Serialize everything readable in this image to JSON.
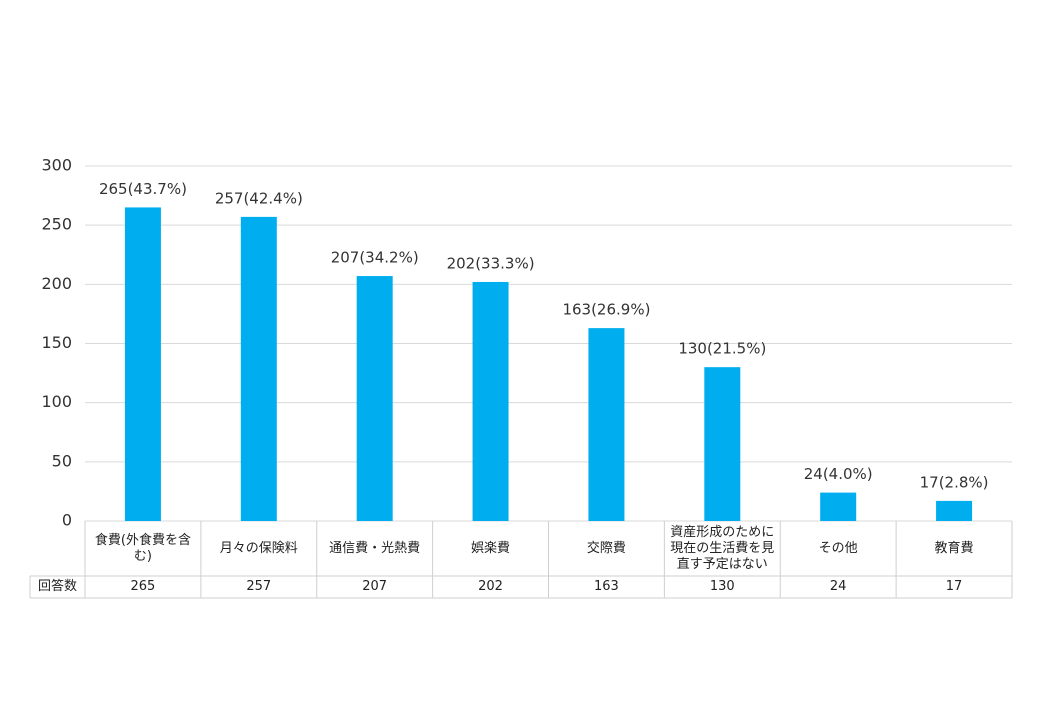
{
  "chart_data": {
    "type": "bar",
    "categories": [
      "食費(外食費を含む)",
      "月々の保険料",
      "通信費・光熱費",
      "娯楽費",
      "交際費",
      "資産形成のために現在の生活費を見直す予定はない",
      "その他",
      "教育費"
    ],
    "values": [
      265,
      257,
      207,
      202,
      163,
      130,
      24,
      17
    ],
    "value_labels": [
      "265(43.7%)",
      "257(42.4%)",
      "207(34.2%)",
      "202(33.3%)",
      "163(26.9%)",
      "130(21.5%)",
      "24(4.0%)",
      "17(2.8%)"
    ],
    "color": "#00aeef",
    "ylim": [
      0,
      300
    ],
    "yticks": [
      0,
      50,
      100,
      150,
      200,
      250,
      300
    ],
    "grid": true,
    "table_row_label": "回答数"
  }
}
